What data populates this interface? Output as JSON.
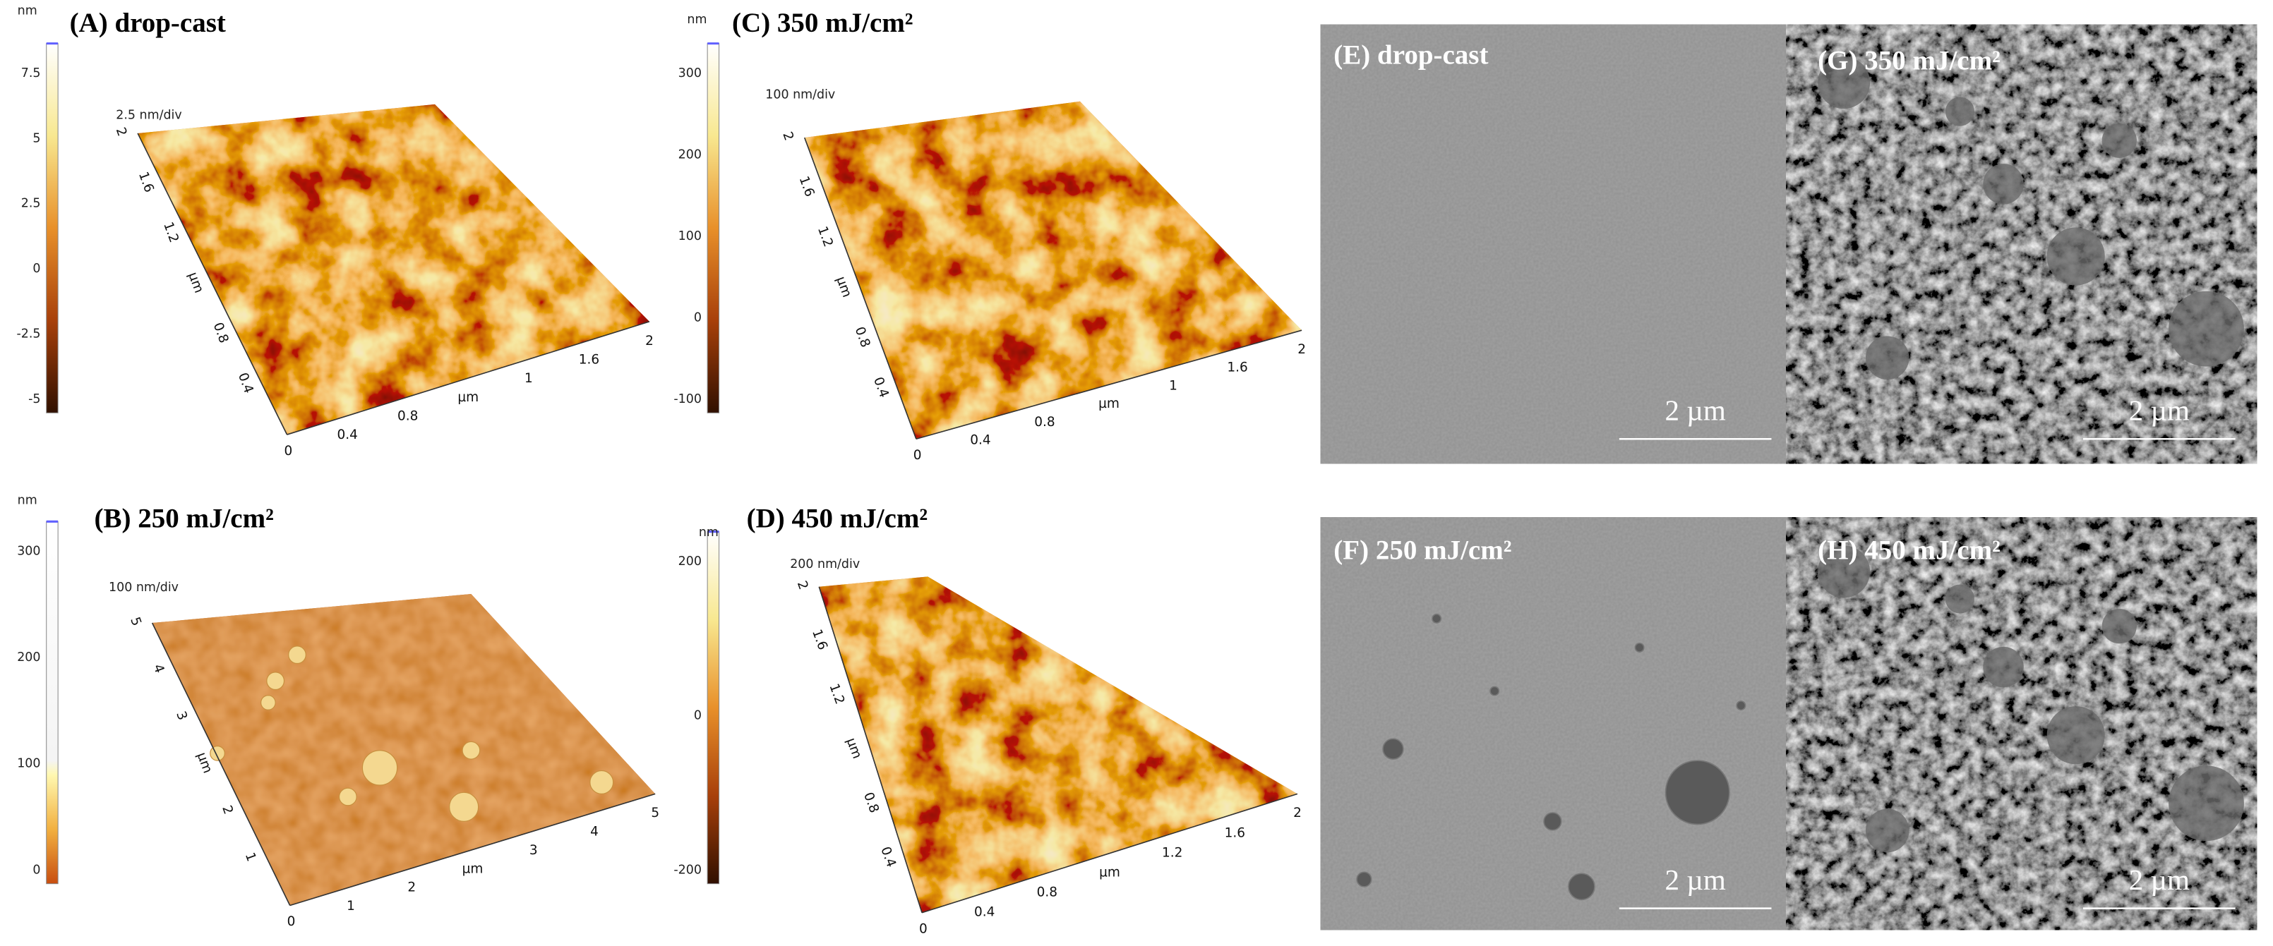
{
  "afm_panels": [
    {
      "label": "(A) drop-cast",
      "colorbar_unit": "nm",
      "colorbar_ticks": [
        "7.5",
        "5",
        "2.5",
        "0",
        "-2.5",
        "-5"
      ],
      "scale": "2.5 nm/div",
      "origin": "0",
      "axis_left": [
        "0.4",
        "0.8",
        "µm",
        "1.2",
        "1.6",
        "2"
      ],
      "axis_bottom": [
        "0.4",
        "0.8",
        "µm",
        "1",
        "1.6",
        "2"
      ]
    },
    {
      "label": "(B) 250 mJ/cm²",
      "colorbar_unit": "nm",
      "colorbar_ticks": [
        "300",
        "200",
        "100",
        "0"
      ],
      "scale": "100 nm/div",
      "origin": "0",
      "axis_left": [
        "1",
        "2",
        "µm",
        "3",
        "4",
        "5"
      ],
      "axis_bottom": [
        "1",
        "2",
        "µm",
        "3",
        "4",
        "5"
      ]
    },
    {
      "label": "(C) 350 mJ/cm²",
      "colorbar_unit": "nm",
      "colorbar_ticks": [
        "300",
        "200",
        "100",
        "0",
        "-100"
      ],
      "scale": "100 nm/div",
      "origin": "0",
      "axis_left": [
        "0.4",
        "0.8",
        "µm",
        "1.2",
        "1.6",
        "2"
      ],
      "axis_bottom": [
        "0.4",
        "0.8",
        "µm",
        "1",
        "1.6",
        "2"
      ]
    },
    {
      "label": "(D) 450 mJ/cm²",
      "colorbar_unit": "nm",
      "colorbar_ticks": [
        "200",
        "0",
        "-200"
      ],
      "scale": "200 nm/div",
      "origin": "0",
      "axis_left": [
        "0.4",
        "0.8",
        "µm",
        "1.2",
        "1.6",
        "2"
      ],
      "axis_bottom": [
        "0.4",
        "0.8",
        "µm",
        "1.2",
        "1.6",
        "2"
      ]
    }
  ],
  "sem_panels": [
    {
      "label": "(E) drop-cast",
      "scale_bar": "2 µm"
    },
    {
      "label": "(F) 250 mJ/cm²",
      "scale_bar": "2 µm"
    },
    {
      "label": "(G) 350 mJ/cm²",
      "scale_bar": "2 µm"
    },
    {
      "label": "(H) 450 mJ/cm²",
      "scale_bar": "2 µm"
    }
  ]
}
